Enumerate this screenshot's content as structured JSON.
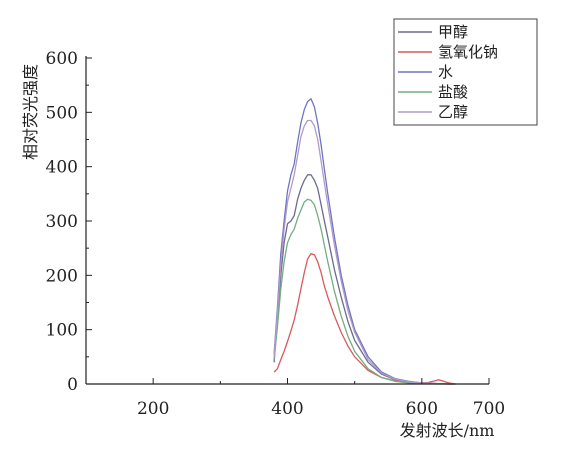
{
  "chart_data": {
    "type": "line",
    "xlabel": "发射波长/nm",
    "ylabel": "相对荧光强度",
    "xlim": [
      100,
      700
    ],
    "ylim": [
      0,
      600
    ],
    "xticks": [
      200,
      400,
      600,
      700
    ],
    "yticks": [
      0,
      100,
      200,
      300,
      400,
      500,
      600
    ],
    "legend_position": "top-right",
    "grid": false,
    "series": [
      {
        "name": "甲醇",
        "color": "#6b6b8c",
        "x": [
          380,
          385,
          390,
          395,
          400,
          405,
          410,
          415,
          420,
          425,
          430,
          435,
          440,
          445,
          450,
          455,
          460,
          470,
          480,
          490,
          500,
          520,
          540,
          560,
          580,
          600,
          620,
          640,
          650
        ],
        "y": [
          40,
          120,
          200,
          260,
          295,
          300,
          310,
          340,
          360,
          375,
          385,
          385,
          375,
          360,
          330,
          300,
          270,
          210,
          160,
          115,
          80,
          40,
          18,
          8,
          4,
          2,
          1,
          0,
          0
        ]
      },
      {
        "name": "氢氧化钠",
        "color": "#d9595c",
        "x": [
          380,
          385,
          390,
          395,
          400,
          405,
          410,
          415,
          420,
          425,
          430,
          435,
          440,
          445,
          450,
          455,
          460,
          470,
          480,
          490,
          500,
          520,
          540,
          560,
          580,
          600,
          610,
          620,
          625,
          630,
          640,
          650
        ],
        "y": [
          22,
          28,
          45,
          60,
          78,
          98,
          118,
          145,
          175,
          205,
          230,
          240,
          238,
          225,
          205,
          180,
          160,
          125,
          95,
          70,
          50,
          25,
          12,
          6,
          3,
          2,
          3,
          6,
          8,
          6,
          2,
          0
        ]
      },
      {
        "name": "水",
        "color": "#6f74c4",
        "x": [
          380,
          385,
          390,
          395,
          400,
          405,
          410,
          415,
          420,
          425,
          430,
          435,
          440,
          445,
          450,
          455,
          460,
          470,
          480,
          490,
          500,
          520,
          540,
          560,
          580,
          600,
          620,
          640,
          650
        ],
        "y": [
          55,
          140,
          240,
          300,
          355,
          385,
          405,
          445,
          480,
          505,
          520,
          525,
          510,
          480,
          440,
          395,
          350,
          270,
          200,
          145,
          100,
          50,
          22,
          10,
          5,
          2,
          1,
          0,
          0
        ]
      },
      {
        "name": "盐酸",
        "color": "#74ad80",
        "x": [
          380,
          385,
          390,
          395,
          400,
          405,
          410,
          415,
          420,
          425,
          430,
          435,
          440,
          445,
          450,
          455,
          460,
          470,
          480,
          490,
          500,
          520,
          540,
          560,
          580,
          600,
          620,
          640,
          650
        ],
        "y": [
          45,
          105,
          175,
          225,
          260,
          275,
          285,
          305,
          320,
          335,
          340,
          338,
          330,
          310,
          285,
          255,
          225,
          170,
          125,
          88,
          60,
          28,
          12,
          5,
          2,
          1,
          0,
          0,
          0
        ]
      },
      {
        "name": "乙醇",
        "color": "#b29ac8",
        "x": [
          380,
          385,
          390,
          395,
          400,
          405,
          410,
          415,
          420,
          425,
          430,
          435,
          440,
          445,
          450,
          455,
          460,
          470,
          480,
          490,
          500,
          520,
          540,
          560,
          580,
          600,
          620,
          640,
          650
        ],
        "y": [
          50,
          130,
          220,
          285,
          335,
          360,
          385,
          420,
          455,
          475,
          485,
          485,
          475,
          450,
          410,
          370,
          330,
          255,
          190,
          135,
          95,
          45,
          20,
          9,
          4,
          2,
          1,
          0,
          0
        ]
      }
    ]
  }
}
